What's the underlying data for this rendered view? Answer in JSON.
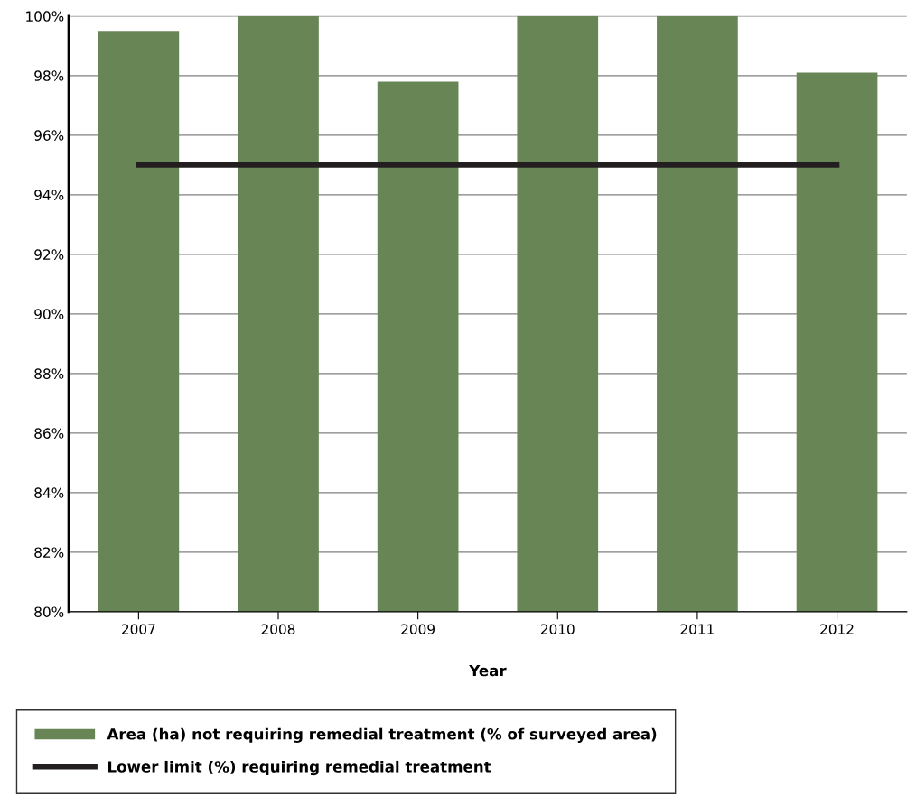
{
  "chart_data": {
    "type": "bar",
    "xlabel": "Year",
    "categories": [
      "2007",
      "2008",
      "2009",
      "2010",
      "2011",
      "2012"
    ],
    "series": [
      {
        "name": "Area (ha) not requiring remedial treatment (% of surveyed area)",
        "color": "#688556",
        "values": [
          99.5,
          100,
          97.8,
          100,
          100,
          98.1
        ]
      },
      {
        "name": "Lower limit (%) requiring remedial treatment",
        "type": "line",
        "color": "#231f20",
        "values": [
          95,
          95,
          95,
          95,
          95,
          95
        ]
      }
    ],
    "ylim": [
      80,
      100
    ],
    "yticks": [
      {
        "value": 80,
        "label": "80%"
      },
      {
        "value": 82,
        "label": "82%"
      },
      {
        "value": 84,
        "label": "84%"
      },
      {
        "value": 86,
        "label": "86%"
      },
      {
        "value": 88,
        "label": "88%"
      },
      {
        "value": 90,
        "label": "90%"
      },
      {
        "value": 92,
        "label": "92%"
      },
      {
        "value": 94,
        "label": "94%"
      },
      {
        "value": 96,
        "label": "96%"
      },
      {
        "value": 98,
        "label": "98%"
      },
      {
        "value": 100,
        "label": "100%"
      }
    ],
    "grid": "y",
    "legend": "bottom",
    "marker": "none",
    "line_style": "solid"
  }
}
